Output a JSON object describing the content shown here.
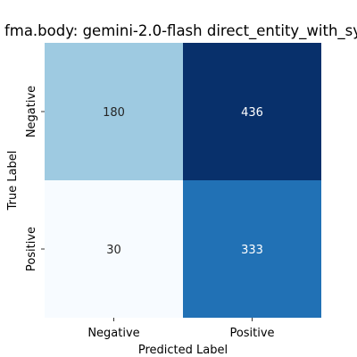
{
  "chart_data": {
    "type": "heatmap",
    "title": "fma.body: gemini-2.0-flash direct_entity_with_sy",
    "xlabel": "Predicted Label",
    "ylabel": "True Label",
    "x_categories": [
      "Negative",
      "Positive"
    ],
    "y_categories": [
      "Negative",
      "Positive"
    ],
    "values": [
      [
        180,
        436
      ],
      [
        30,
        333
      ]
    ],
    "colormap": "Blues",
    "value_range": [
      30,
      436
    ],
    "colorbar": false,
    "grid": false
  },
  "colors": {
    "cell_0_0": "#9ecae1",
    "cell_0_1": "#08306b",
    "cell_1_0": "#f7fbff",
    "cell_1_1": "#2171b5",
    "dark_text": "#262626",
    "light_text": "#ffffff"
  }
}
